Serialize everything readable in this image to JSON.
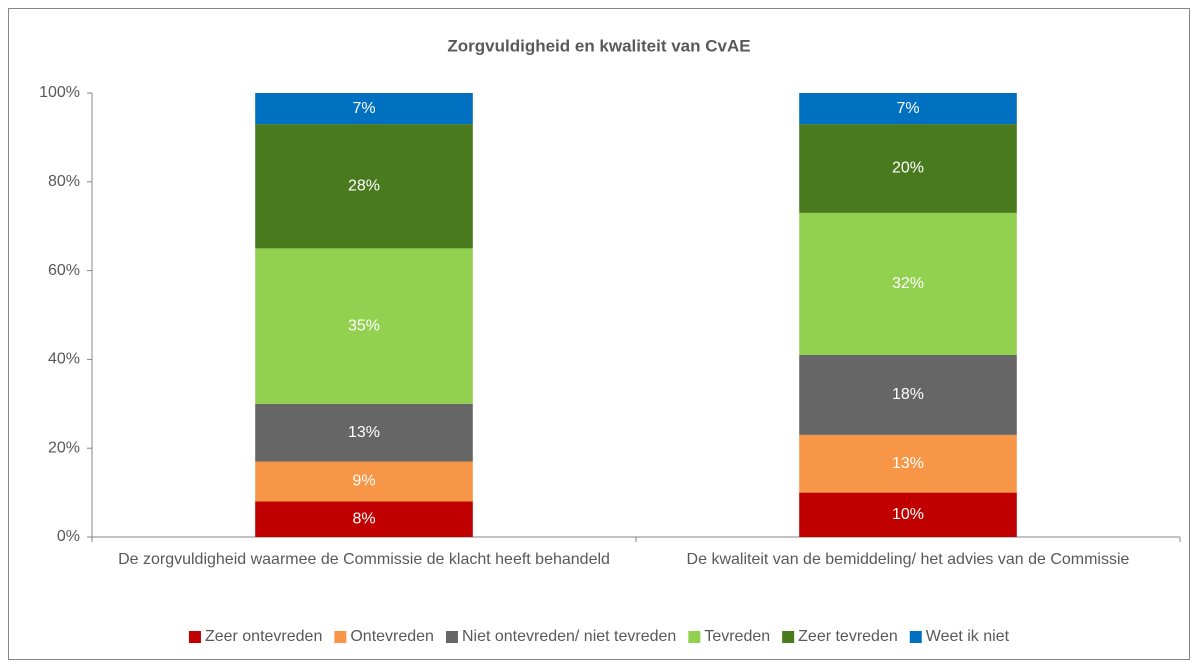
{
  "chart_data": {
    "type": "stacked_bar",
    "title": "Zorgvuldigheid en kwaliteit van CvAE",
    "categories": [
      "De zorgvuldigheid waarmee de Commissie de klacht heeft behandeld",
      "De kwaliteit van de bemiddeling/ het advies van de Commissie"
    ],
    "series": [
      {
        "name": "Zeer ontevreden",
        "color": "#c00000",
        "values": [
          8,
          10
        ],
        "value_labels": [
          "8%",
          "10%"
        ]
      },
      {
        "name": "Ontevreden",
        "color": "#f79646",
        "values": [
          9,
          13
        ],
        "value_labels": [
          "9%",
          "13%"
        ]
      },
      {
        "name": "Niet ontevreden/ niet tevreden",
        "color": "#666666",
        "values": [
          13,
          18
        ],
        "value_labels": [
          "13%",
          "18%"
        ]
      },
      {
        "name": "Tevreden",
        "color": "#92d050",
        "values": [
          35,
          32
        ],
        "value_labels": [
          "35%",
          "32%"
        ]
      },
      {
        "name": "Zeer tevreden",
        "color": "#4a7a1e",
        "values": [
          28,
          20
        ],
        "value_labels": [
          "28%",
          "20%"
        ]
      },
      {
        "name": "Weet ik niet",
        "color": "#0070c0",
        "values": [
          7,
          7
        ],
        "value_labels": [
          "7%",
          "7%"
        ]
      }
    ],
    "ylim": [
      0,
      100
    ],
    "yticks": [
      {
        "value": 0,
        "label": "0%"
      },
      {
        "value": 20,
        "label": "20%"
      },
      {
        "value": 40,
        "label": "40%"
      },
      {
        "value": 60,
        "label": "60%"
      },
      {
        "value": 80,
        "label": "80%"
      },
      {
        "value": 100,
        "label": "100%"
      }
    ],
    "grid": false,
    "legend": "bottom"
  }
}
